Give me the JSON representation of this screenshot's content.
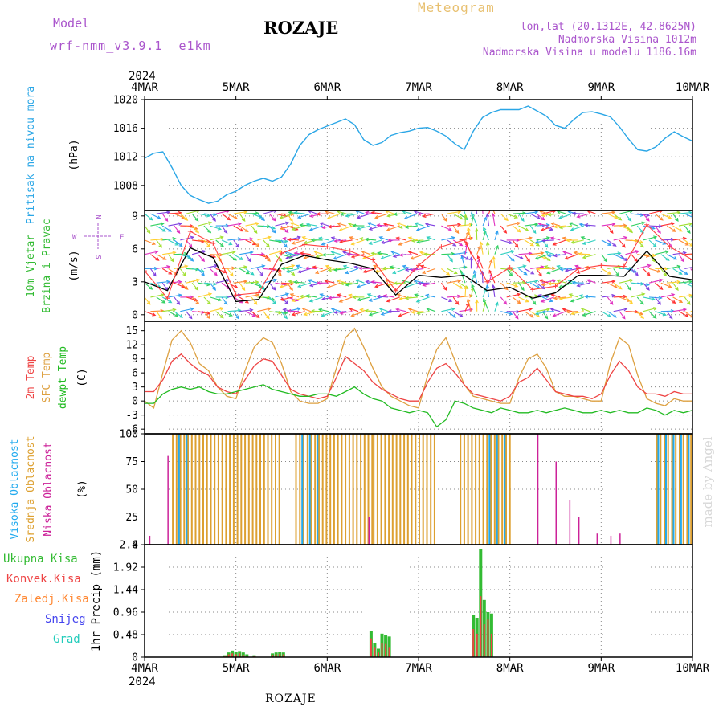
{
  "header": {
    "model_label": "Model",
    "model_name": "wrf-nmm_v3.9.1  e1km",
    "station_title": "ROZAJE",
    "meteogram_label": "Meteogram",
    "coords": "lon,lat (20.1312E, 42.8625N)",
    "altitude": "Nadmorska Visina 1012m",
    "model_altitude": "Nadmorska Visina u modelu 1186.16m",
    "footer_title": "ROZAJE",
    "watermark": "made by Angel"
  },
  "colors": {
    "pressure": "#2aa6e6",
    "wind_speed": "#000000",
    "gust": "#ff4040",
    "temp2m": "#ee4444",
    "sfc_temp": "#dda040",
    "dewpoint": "#22bb22",
    "cloud_high": "#22aaee",
    "cloud_mid": "#dda030",
    "cloud_low": "#cc2299",
    "precip_total": "#33bb33",
    "precip_conv": "#ee4444",
    "precip_frz": "#ff8833",
    "snow": "#4444ee",
    "grad": "#22ccbb",
    "title_purple": "#aa55cc",
    "meteogram_orange": "#e8c070"
  },
  "time_axis": {
    "year": "2024",
    "ticks": [
      "4MAR",
      "5MAR",
      "6MAR",
      "7MAR",
      "8MAR",
      "9MAR",
      "10MAR"
    ]
  },
  "chart_data": [
    {
      "type": "line",
      "id": "pressure",
      "ylabel_left": "Pritisak na nivou mora",
      "unit": "(hPa)",
      "ylim": [
        1004.5,
        1020
      ],
      "yticks": [
        "1008",
        "1012",
        "1016",
        "1020"
      ],
      "x_days": [
        0,
        0.1,
        0.2,
        0.3,
        0.4,
        0.5,
        0.6,
        0.7,
        0.8,
        0.9,
        1.0,
        1.1,
        1.2,
        1.3,
        1.4,
        1.5,
        1.6,
        1.7,
        1.8,
        1.9,
        2.0,
        2.1,
        2.2,
        2.3,
        2.4,
        2.5,
        2.6,
        2.7,
        2.8,
        2.9,
        3.0,
        3.1,
        3.2,
        3.3,
        3.4,
        3.5,
        3.6,
        3.7,
        3.8,
        3.9,
        4.0,
        4.1,
        4.2,
        4.3,
        4.4,
        4.5,
        4.6,
        4.7,
        4.8,
        4.9,
        5.0,
        5.1,
        5.2,
        5.3,
        5.4,
        5.5,
        5.6,
        5.7,
        5.8,
        5.9,
        6.0
      ],
      "values": [
        1011.8,
        1012.5,
        1012.7,
        1010.5,
        1008.0,
        1006.6,
        1006.0,
        1005.5,
        1005.8,
        1006.7,
        1007.2,
        1008.0,
        1008.6,
        1009.0,
        1008.6,
        1009.2,
        1011.0,
        1013.6,
        1015.1,
        1015.8,
        1016.3,
        1016.8,
        1017.3,
        1016.5,
        1014.4,
        1013.6,
        1014.0,
        1015.0,
        1015.4,
        1015.6,
        1016.0,
        1016.1,
        1015.6,
        1014.9,
        1013.8,
        1013.0,
        1015.6,
        1017.5,
        1018.2,
        1018.6,
        1018.6,
        1018.6,
        1019.1,
        1018.4,
        1017.7,
        1016.4,
        1016.0,
        1017.2,
        1018.2,
        1018.3,
        1018.0,
        1017.6,
        1016.2,
        1014.5,
        1013.0,
        1012.8,
        1013.4,
        1014.6,
        1015.5,
        1014.8,
        1014.2
      ]
    },
    {
      "type": "line",
      "id": "wind",
      "ylabel_left_1": "10m Vjetar",
      "ylabel_left_2": "Brzina i Pravac",
      "unit": "(m/s)",
      "ylim": [
        -0.6,
        9.5
      ],
      "yticks": [
        "0",
        "3",
        "6",
        "9"
      ],
      "compass": {
        "w": "W",
        "e": "E",
        "n": "N",
        "s": "S"
      },
      "x_days": [
        0,
        0.25,
        0.5,
        0.75,
        1.0,
        1.25,
        1.5,
        1.75,
        2.0,
        2.25,
        2.5,
        2.75,
        3.0,
        3.25,
        3.5,
        3.75,
        4.0,
        4.25,
        4.5,
        4.75,
        5.0,
        5.25,
        5.5,
        5.75,
        6.0
      ],
      "values": [
        3.0,
        2.2,
        6.1,
        5.2,
        1.2,
        1.4,
        4.6,
        5.4,
        5.0,
        4.7,
        4.2,
        1.8,
        3.6,
        3.4,
        3.6,
        2.2,
        2.5,
        1.5,
        2.0,
        3.6,
        3.6,
        3.5,
        5.8,
        3.5,
        3.2
      ],
      "gust_values": [
        4.0,
        1.5,
        7.6,
        6.5,
        1.8,
        2.0,
        5.6,
        6.4,
        6.2,
        5.8,
        5.0,
        2.2,
        4.5,
        6.2,
        6.8,
        3.0,
        4.3,
        2.3,
        2.6,
        4.2,
        4.5,
        4.4,
        8.2,
        6.2,
        5.0
      ]
    },
    {
      "type": "line",
      "id": "temperature",
      "ylabel_left_1": "2m Temp",
      "ylabel_left_2": "SFC Temp",
      "ylabel_left_3": "dewpt Temp",
      "unit": "(C)",
      "ylim": [
        -7,
        17
      ],
      "yticks": [
        "-6",
        "-3",
        "0",
        "3",
        "6",
        "9",
        "12",
        "15"
      ],
      "x_days": [
        0,
        0.1,
        0.2,
        0.3,
        0.4,
        0.5,
        0.6,
        0.7,
        0.8,
        0.9,
        1.0,
        1.1,
        1.2,
        1.3,
        1.4,
        1.5,
        1.6,
        1.7,
        1.8,
        1.9,
        2.0,
        2.1,
        2.2,
        2.3,
        2.4,
        2.5,
        2.6,
        2.7,
        2.8,
        2.9,
        3.0,
        3.1,
        3.2,
        3.3,
        3.4,
        3.5,
        3.6,
        3.7,
        3.8,
        3.9,
        4.0,
        4.1,
        4.2,
        4.3,
        4.4,
        4.5,
        4.6,
        4.7,
        4.8,
        4.9,
        5.0,
        5.1,
        5.2,
        5.3,
        5.4,
        5.5,
        5.6,
        5.7,
        5.8,
        5.9,
        6.0
      ],
      "temp2m": [
        2.0,
        2.0,
        4.5,
        8.5,
        10.0,
        8.0,
        6.5,
        5.5,
        3.0,
        2.0,
        1.5,
        4.5,
        7.5,
        9.0,
        8.5,
        5.5,
        2.5,
        1.5,
        1.0,
        0.5,
        1.0,
        5.0,
        9.5,
        8.0,
        6.5,
        4.0,
        2.5,
        1.5,
        0.5,
        0.0,
        0.0,
        4.0,
        7.0,
        8.0,
        6.0,
        3.5,
        1.5,
        1.0,
        0.5,
        0.0,
        1.0,
        4.0,
        5.0,
        7.0,
        4.5,
        2.0,
        1.5,
        1.0,
        1.0,
        0.5,
        1.5,
        5.5,
        8.5,
        6.5,
        3.0,
        1.5,
        1.5,
        1.0,
        2.0,
        1.5,
        1.5
      ],
      "sfc_temp": [
        0.0,
        -1.5,
        6.0,
        13.0,
        15.0,
        12.5,
        8.0,
        6.5,
        3.0,
        1.0,
        0.5,
        6.5,
        11.5,
        13.5,
        12.5,
        8.0,
        2.0,
        0.0,
        -0.5,
        -0.5,
        0.5,
        7.0,
        13.5,
        15.5,
        11.5,
        7.0,
        3.0,
        1.0,
        0.0,
        -1.0,
        -1.5,
        5.5,
        11.0,
        13.5,
        8.5,
        3.5,
        1.0,
        0.5,
        0.0,
        -0.5,
        -0.5,
        5.0,
        9.0,
        10.0,
        7.0,
        2.0,
        1.0,
        1.0,
        0.5,
        0.0,
        0.0,
        8.0,
        13.5,
        12.0,
        5.5,
        0.5,
        -0.5,
        -1.0,
        0.5,
        0.0,
        0.0
      ],
      "dewpoint": [
        -0.5,
        -0.5,
        1.5,
        2.5,
        3.0,
        2.5,
        3.0,
        2.0,
        1.5,
        1.5,
        2.0,
        2.5,
        3.0,
        3.5,
        2.5,
        2.0,
        1.5,
        1.0,
        1.0,
        1.5,
        1.5,
        1.0,
        2.0,
        3.0,
        1.5,
        0.5,
        0.0,
        -1.5,
        -2.0,
        -2.5,
        -2.0,
        -2.5,
        -5.5,
        -4.0,
        0.0,
        -0.5,
        -1.5,
        -2.0,
        -2.5,
        -1.5,
        -2.0,
        -2.5,
        -2.5,
        -2.0,
        -2.5,
        -2.0,
        -1.5,
        -2.0,
        -2.5,
        -2.5,
        -2.0,
        -2.5,
        -2.0,
        -2.5,
        -2.5,
        -1.5,
        -2.0,
        -3.0,
        -2.0,
        -2.5,
        -2.0
      ]
    },
    {
      "type": "bar",
      "id": "clouds",
      "ylabel_left_1": "Visoka Oblacnost",
      "ylabel_left_2": "Srednja Oblacnost",
      "ylabel_left_3": "Niska Oblacnost",
      "unit": "(%)",
      "ylim": [
        0,
        100
      ],
      "yticks": [
        "0",
        "25",
        "50",
        "75",
        "100"
      ],
      "mid_cover": [
        {
          "x": [
            0.3,
            1.5
          ],
          "v": 100
        },
        {
          "x": [
            1.65,
            2.5
          ],
          "v": 100
        },
        {
          "x": [
            2.5,
            3.2
          ],
          "v": 100
        },
        {
          "x": [
            3.45,
            4.0
          ],
          "v": 100
        },
        {
          "x": [
            5.6,
            6.0
          ],
          "v": 100
        }
      ],
      "high_cover": [
        {
          "x": [
            0.35,
            0.5
          ],
          "v": 100
        },
        {
          "x": [
            1.7,
            1.9
          ],
          "v": 100
        },
        {
          "x": [
            3.75,
            3.95
          ],
          "v": 100
        },
        {
          "x": [
            5.6,
            5.95
          ],
          "v": 100
        }
      ],
      "low_cover": [
        {
          "x": 0.05,
          "v": 8
        },
        {
          "x": 0.25,
          "v": 80
        },
        {
          "x": 2.45,
          "v": 25
        },
        {
          "x": 4.3,
          "v": 100
        },
        {
          "x": 4.5,
          "v": 75
        },
        {
          "x": 4.65,
          "v": 40
        },
        {
          "x": 4.75,
          "v": 25
        },
        {
          "x": 4.95,
          "v": 10
        },
        {
          "x": 5.1,
          "v": 8
        },
        {
          "x": 5.2,
          "v": 10
        }
      ]
    },
    {
      "type": "bar",
      "id": "precip",
      "ylabel_left_1": "Ukupna Kisa",
      "ylabel_left_2": "Konvek.Kisa",
      "ylabel_left_3": "Zaledj.Kisa",
      "ylabel_left_4": "Snijeg",
      "ylabel_left_5": "Grad",
      "unit": "1hr Precip (mm)",
      "ylim": [
        0,
        2.4
      ],
      "yticks": [
        "0",
        "0.48",
        "0.96",
        "1.44",
        "1.92",
        "2.4"
      ],
      "x_days": [
        0.88,
        0.92,
        0.96,
        1.0,
        1.04,
        1.08,
        1.12,
        1.2,
        1.4,
        1.44,
        1.48,
        1.52,
        2.48,
        2.52,
        2.56,
        2.6,
        2.64,
        2.68,
        3.6,
        3.64,
        3.68,
        3.72,
        3.76,
        3.8
      ],
      "total": [
        0.04,
        0.1,
        0.14,
        0.12,
        0.13,
        0.1,
        0.06,
        0.04,
        0.08,
        0.1,
        0.12,
        0.1,
        0.56,
        0.3,
        0.18,
        0.5,
        0.48,
        0.44,
        0.9,
        0.84,
        2.3,
        1.22,
        0.96,
        0.93
      ],
      "convective": [
        0.02,
        0.06,
        0.08,
        0.06,
        0.08,
        0.05,
        0.03,
        0.02,
        0.05,
        0.06,
        0.07,
        0.06,
        0.4,
        0.2,
        0.1,
        0.3,
        0.28,
        0.2,
        0.6,
        0.5,
        1.3,
        0.7,
        0.8,
        0.5
      ]
    }
  ]
}
